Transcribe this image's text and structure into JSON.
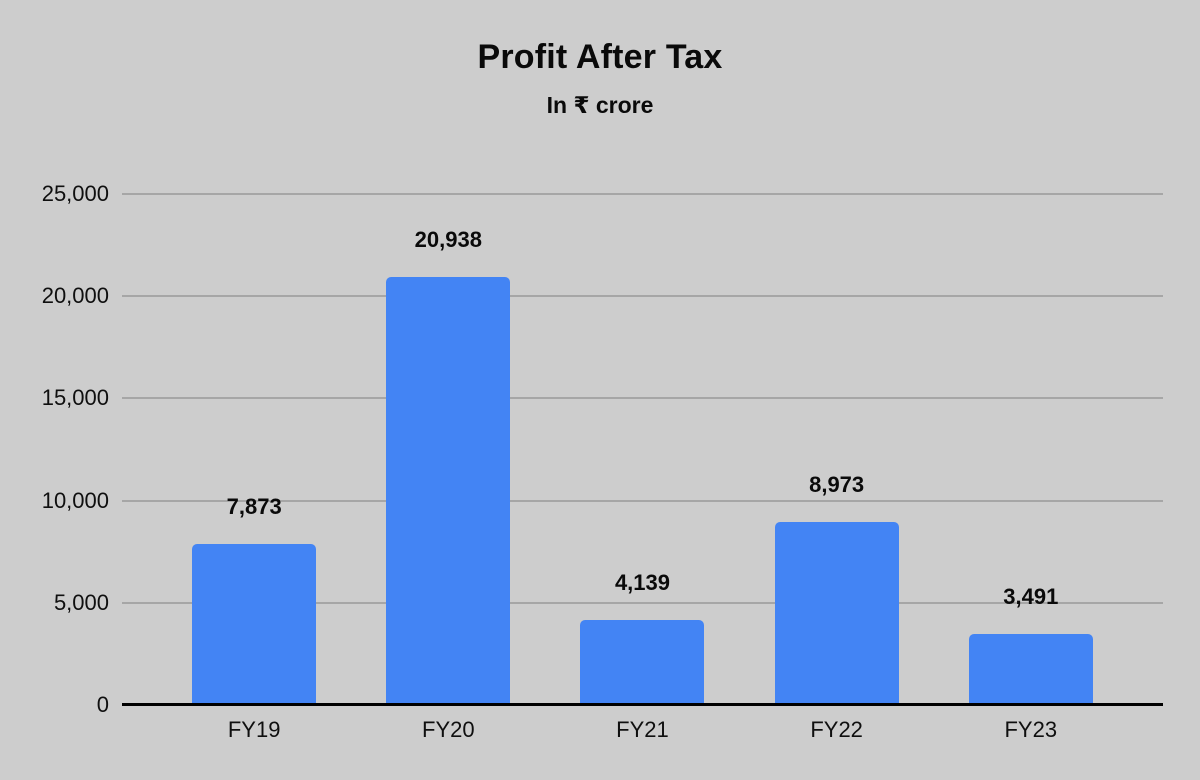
{
  "chart_data": {
    "type": "bar",
    "title": "Profit After Tax",
    "subtitle": "In ₹ crore",
    "categories": [
      "FY19",
      "FY20",
      "FY21",
      "FY22",
      "FY23"
    ],
    "values": [
      7873,
      20938,
      4139,
      8973,
      3491
    ],
    "value_labels": [
      "7,873",
      "20,938",
      "4,139",
      "8,973",
      "3,491"
    ],
    "yticks": [
      0,
      5000,
      10000,
      15000,
      20000,
      25000
    ],
    "ytick_labels": [
      "0",
      "5,000",
      "10,000",
      "15,000",
      "20,000",
      "25,000"
    ],
    "ylim": [
      0,
      25000
    ],
    "xlabel": "",
    "ylabel": "",
    "grid": true,
    "legend_position": "none",
    "colors": {
      "background": "#cdcdcd",
      "bar": "#4384f4",
      "gridline": "#a6a6a6",
      "axis_line": "#000000",
      "text": "#0f0f0f"
    }
  }
}
